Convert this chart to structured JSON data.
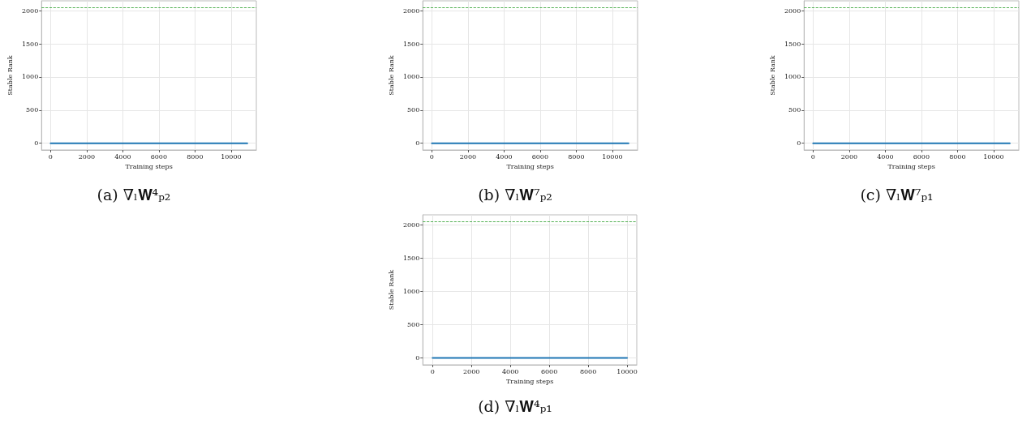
{
  "chart_data": [
    {
      "type": "line",
      "title": "(a) ∇ₗ𝐖⁴ₚ₂",
      "xlabel": "Training steps",
      "ylabel": "Stable Rank",
      "x": [
        0,
        2000,
        4000,
        6000,
        8000,
        10900
      ],
      "series": [
        {
          "color": "#1f77b4",
          "values": [
            0,
            0,
            0,
            0,
            0,
            0
          ]
        }
      ],
      "xlim": [
        -500,
        11400
      ],
      "ylim": [
        -102,
        2150
      ],
      "xticks": [
        0,
        2000,
        4000,
        6000,
        8000,
        10000
      ],
      "yticks": [
        0,
        500,
        1000,
        1500,
        2000
      ],
      "grid": true,
      "ref_lines": [
        {
          "axis": "y",
          "value": 2048,
          "color": "#2ca02c",
          "line_style": "dashed"
        }
      ]
    },
    {
      "type": "line",
      "title": "(b) ∇ₗ𝐖⁷ₚ₂",
      "xlabel": "Training steps",
      "ylabel": "Stable Rank",
      "x": [
        0,
        2000,
        4000,
        6000,
        8000,
        10900
      ],
      "series": [
        {
          "color": "#1f77b4",
          "values": [
            0,
            0,
            0,
            0,
            0,
            0
          ]
        }
      ],
      "xlim": [
        -500,
        11400
      ],
      "ylim": [
        -102,
        2150
      ],
      "xticks": [
        0,
        2000,
        4000,
        6000,
        8000,
        10000
      ],
      "yticks": [
        0,
        500,
        1000,
        1500,
        2000
      ],
      "grid": true,
      "ref_lines": [
        {
          "axis": "y",
          "value": 2048,
          "color": "#2ca02c",
          "line_style": "dashed"
        }
      ]
    },
    {
      "type": "line",
      "title": "(c) ∇ₗ𝐖⁷ₚ₁",
      "xlabel": "Training steps",
      "ylabel": "Stable Rank",
      "x": [
        0,
        2000,
        4000,
        6000,
        8000,
        10900
      ],
      "series": [
        {
          "color": "#1f77b4",
          "values": [
            0,
            0,
            0,
            0,
            0,
            0
          ]
        }
      ],
      "xlim": [
        -500,
        11400
      ],
      "ylim": [
        -102,
        2150
      ],
      "xticks": [
        0,
        2000,
        4000,
        6000,
        8000,
        10000
      ],
      "yticks": [
        0,
        500,
        1000,
        1500,
        2000
      ],
      "grid": true,
      "ref_lines": [
        {
          "axis": "y",
          "value": 2048,
          "color": "#2ca02c",
          "line_style": "dashed"
        }
      ]
    },
    {
      "type": "line",
      "title": "(d) ∇ₗ𝐖⁴ₚ₁",
      "xlabel": "Training steps",
      "ylabel": "Stable Rank",
      "x": [
        0,
        2000,
        4000,
        6000,
        8000,
        10000
      ],
      "series": [
        {
          "color": "#1f77b4",
          "values": [
            0,
            0,
            0,
            0,
            0,
            0
          ]
        }
      ],
      "xlim": [
        -500,
        10500
      ],
      "ylim": [
        -102,
        2150
      ],
      "xticks": [
        0,
        2000,
        4000,
        6000,
        8000,
        10000
      ],
      "yticks": [
        0,
        500,
        1000,
        1500,
        2000
      ],
      "grid": true,
      "ref_lines": [
        {
          "axis": "y",
          "value": 2048,
          "color": "#2ca02c",
          "line_style": "dashed"
        }
      ]
    }
  ]
}
